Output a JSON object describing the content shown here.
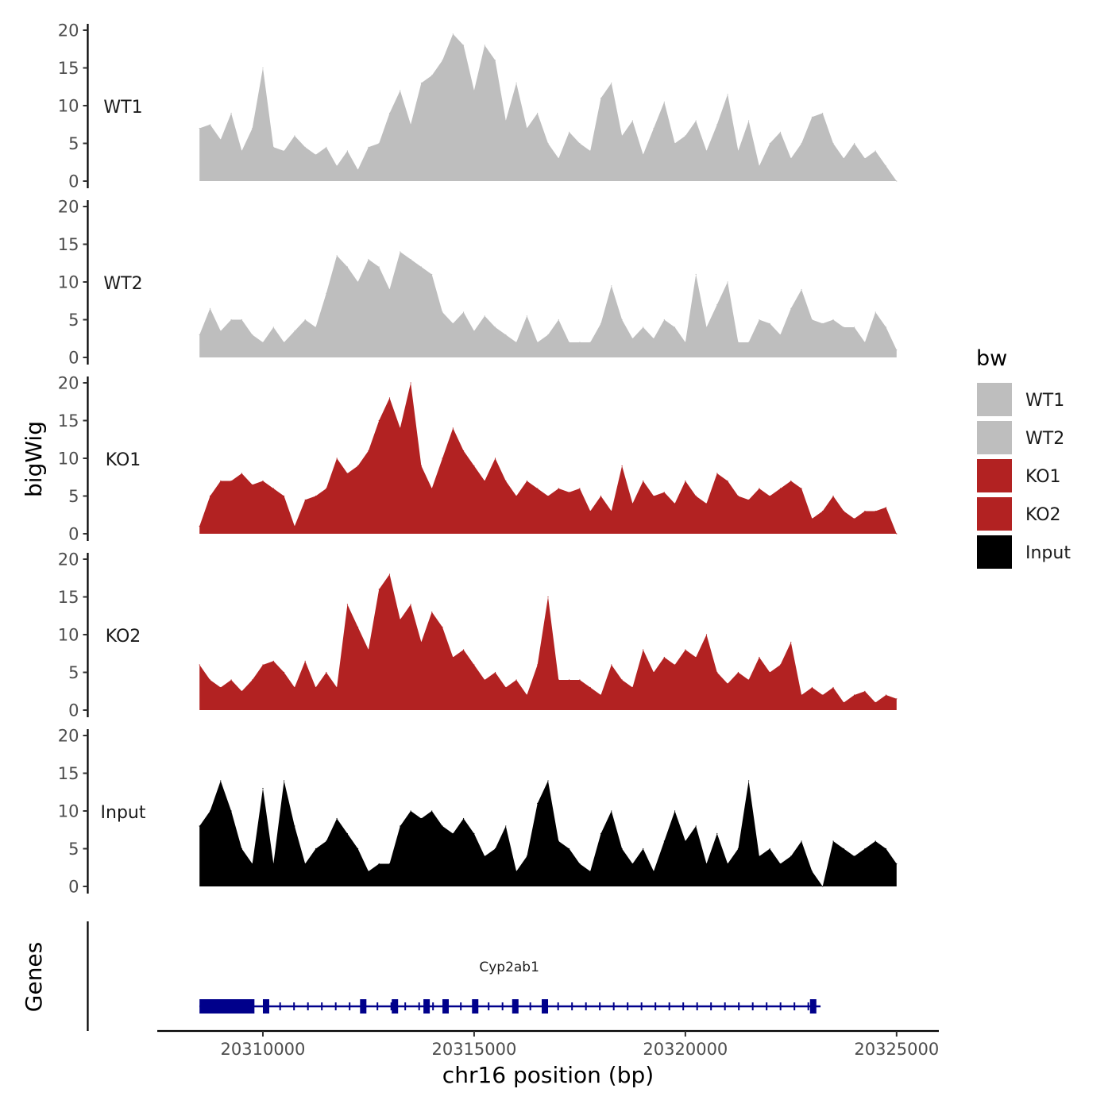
{
  "chart_data": {
    "type": "area",
    "title": "",
    "xlabel": "chr16 position (bp)",
    "ylabel": "bigWig",
    "genes_label": "Genes",
    "xlim": [
      20307500,
      20326000
    ],
    "x_ticks": [
      20310000,
      20315000,
      20320000,
      20325000
    ],
    "x_tick_labels": [
      "20310000",
      "20315000",
      "20320000",
      "20325000"
    ],
    "ylim": [
      0,
      21
    ],
    "y_ticks": [
      0,
      5,
      10,
      15,
      20
    ],
    "y_tick_labels": [
      "0",
      "5",
      "10",
      "15",
      "20"
    ],
    "legend": {
      "title": "bw",
      "position": "right",
      "entries": [
        {
          "label": "WT1",
          "color": "#BEBEBE"
        },
        {
          "label": "WT2",
          "color": "#BEBEBE"
        },
        {
          "label": "KO1",
          "color": "#B22222"
        },
        {
          "label": "KO2",
          "color": "#B22222"
        },
        {
          "label": "Input",
          "color": "#000000"
        }
      ]
    },
    "series": [
      {
        "name": "WT1",
        "color": "#BEBEBE",
        "x": [
          20308500,
          20308750,
          20309000,
          20309250,
          20309500,
          20309750,
          20310000,
          20310250,
          20310500,
          20310750,
          20311000,
          20311250,
          20311500,
          20311750,
          20312000,
          20312250,
          20312500,
          20312750,
          20313000,
          20313250,
          20313500,
          20313750,
          20314000,
          20314250,
          20314500,
          20314750,
          20315000,
          20315250,
          20315500,
          20315750,
          20316000,
          20316250,
          20316500,
          20316750,
          20317000,
          20317250,
          20317500,
          20317750,
          20318000,
          20318250,
          20318500,
          20318750,
          20319000,
          20319250,
          20319500,
          20319750,
          20320000,
          20320250,
          20320500,
          20320750,
          20321000,
          20321250,
          20321500,
          20321750,
          20322000,
          20322250,
          20322500,
          20322750,
          20323000,
          20323250,
          20323500,
          20323750,
          20324000,
          20324250,
          20324500,
          20324750,
          20325000
        ],
        "values": [
          7,
          7.5,
          5.5,
          9,
          4,
          7,
          15,
          4.5,
          4,
          6,
          4.5,
          3.5,
          4.5,
          2,
          4,
          1.5,
          4.5,
          5,
          9,
          12,
          7.5,
          13,
          14,
          16,
          19.5,
          18,
          12,
          18,
          16,
          8,
          13,
          7,
          9,
          5,
          3,
          6.5,
          5,
          4,
          11,
          13,
          6,
          8,
          3.5,
          7,
          10.5,
          5,
          6,
          8,
          4,
          7.5,
          11.5,
          4,
          8,
          2,
          5,
          6.5,
          3,
          5,
          8.5,
          9,
          5,
          3,
          5,
          3,
          4,
          2,
          0
        ]
      },
      {
        "name": "WT2",
        "color": "#BEBEBE",
        "x": [
          20308500,
          20308750,
          20309000,
          20309250,
          20309500,
          20309750,
          20310000,
          20310250,
          20310500,
          20310750,
          20311000,
          20311250,
          20311500,
          20311750,
          20312000,
          20312250,
          20312500,
          20312750,
          20313000,
          20313250,
          20313500,
          20313750,
          20314000,
          20314250,
          20314500,
          20314750,
          20315000,
          20315250,
          20315500,
          20315750,
          20316000,
          20316250,
          20316500,
          20316750,
          20317000,
          20317250,
          20317500,
          20317750,
          20318000,
          20318250,
          20318500,
          20318750,
          20319000,
          20319250,
          20319500,
          20319750,
          20320000,
          20320250,
          20320500,
          20320750,
          20321000,
          20321250,
          20321500,
          20321750,
          20322000,
          20322250,
          20322500,
          20322750,
          20323000,
          20323250,
          20323500,
          20323750,
          20324000,
          20324250,
          20324500,
          20324750,
          20325000
        ],
        "values": [
          3,
          6.5,
          3.5,
          5,
          5,
          3,
          2,
          4,
          2,
          3.5,
          5,
          4,
          8.5,
          13.5,
          12,
          10,
          13,
          12,
          9,
          14,
          13,
          12,
          11,
          6,
          4.5,
          6,
          3.5,
          5.5,
          4,
          3,
          2,
          5.5,
          2,
          3,
          5,
          2,
          2,
          2,
          4.5,
          9.5,
          5,
          2.5,
          4,
          2.5,
          5,
          4,
          2,
          11,
          4,
          7,
          10,
          2,
          2,
          5,
          4.5,
          3,
          6.5,
          9,
          5,
          4.5,
          5,
          4,
          4,
          2,
          6,
          4,
          1
        ]
      },
      {
        "name": "KO1",
        "color": "#B22222",
        "x": [
          20308500,
          20308750,
          20309000,
          20309250,
          20309500,
          20309750,
          20310000,
          20310250,
          20310500,
          20310750,
          20311000,
          20311250,
          20311500,
          20311750,
          20312000,
          20312250,
          20312500,
          20312750,
          20313000,
          20313250,
          20313500,
          20313750,
          20314000,
          20314250,
          20314500,
          20314750,
          20315000,
          20315250,
          20315500,
          20315750,
          20316000,
          20316250,
          20316500,
          20316750,
          20317000,
          20317250,
          20317500,
          20317750,
          20318000,
          20318250,
          20318500,
          20318750,
          20319000,
          20319250,
          20319500,
          20319750,
          20320000,
          20320250,
          20320500,
          20320750,
          20321000,
          20321250,
          20321500,
          20321750,
          20322000,
          20322250,
          20322500,
          20322750,
          20323000,
          20323250,
          20323500,
          20323750,
          20324000,
          20324250,
          20324500,
          20324750,
          20325000
        ],
        "values": [
          1,
          5,
          7,
          7,
          8,
          6.5,
          7,
          6,
          5,
          1,
          4.5,
          5,
          6,
          10,
          8,
          9,
          11,
          15,
          18,
          14,
          20,
          9,
          6,
          10,
          14,
          11,
          9,
          7,
          10,
          7,
          5,
          7,
          6,
          5,
          6,
          5.5,
          6,
          3,
          5,
          3,
          9,
          4,
          7,
          5,
          5.5,
          4,
          7,
          5,
          4,
          8,
          7,
          5,
          4.5,
          6,
          5,
          6,
          7,
          6,
          2,
          3,
          5,
          3,
          2,
          3,
          3,
          3.5,
          0
        ]
      },
      {
        "name": "KO2",
        "color": "#B22222",
        "x": [
          20308500,
          20308750,
          20309000,
          20309250,
          20309500,
          20309750,
          20310000,
          20310250,
          20310500,
          20310750,
          20311000,
          20311250,
          20311500,
          20311750,
          20312000,
          20312250,
          20312500,
          20312750,
          20313000,
          20313250,
          20313500,
          20313750,
          20314000,
          20314250,
          20314500,
          20314750,
          20315000,
          20315250,
          20315500,
          20315750,
          20316000,
          20316250,
          20316500,
          20316750,
          20317000,
          20317250,
          20317500,
          20317750,
          20318000,
          20318250,
          20318500,
          20318750,
          20319000,
          20319250,
          20319500,
          20319750,
          20320000,
          20320250,
          20320500,
          20320750,
          20321000,
          20321250,
          20321500,
          20321750,
          20322000,
          20322250,
          20322500,
          20322750,
          20323000,
          20323250,
          20323500,
          20323750,
          20324000,
          20324250,
          20324500,
          20324750,
          20325000
        ],
        "values": [
          6,
          4,
          3,
          4,
          2.5,
          4,
          6,
          6.5,
          5,
          3,
          6.5,
          3,
          5,
          3,
          14,
          11,
          8,
          16,
          18,
          12,
          14,
          9,
          13,
          11,
          7,
          8,
          6,
          4,
          5,
          3,
          4,
          2,
          6,
          15,
          4,
          4,
          4,
          3,
          2,
          6,
          4,
          3,
          8,
          5,
          7,
          6,
          8,
          7,
          10,
          5,
          3.5,
          5,
          4,
          7,
          5,
          6,
          9,
          2,
          3,
          2,
          3,
          1,
          2,
          2.5,
          1,
          2,
          1.5
        ]
      },
      {
        "name": "Input",
        "color": "#000000",
        "x": [
          20308500,
          20308750,
          20309000,
          20309250,
          20309500,
          20309750,
          20310000,
          20310250,
          20310500,
          20310750,
          20311000,
          20311250,
          20311500,
          20311750,
          20312000,
          20312250,
          20312500,
          20312750,
          20313000,
          20313250,
          20313500,
          20313750,
          20314000,
          20314250,
          20314500,
          20314750,
          20315000,
          20315250,
          20315500,
          20315750,
          20316000,
          20316250,
          20316500,
          20316750,
          20317000,
          20317250,
          20317500,
          20317750,
          20318000,
          20318250,
          20318500,
          20318750,
          20319000,
          20319250,
          20319500,
          20319750,
          20320000,
          20320250,
          20320500,
          20320750,
          20321000,
          20321250,
          20321500,
          20321750,
          20322000,
          20322250,
          20322500,
          20322750,
          20323000,
          20323250,
          20323500,
          20323750,
          20324000,
          20324250,
          20324500,
          20324750,
          20325000
        ],
        "values": [
          8,
          10,
          14,
          10,
          5,
          3,
          13,
          3,
          14,
          8,
          3,
          5,
          6,
          9,
          7,
          5,
          2,
          3,
          3,
          8,
          10,
          9,
          10,
          8,
          7,
          9,
          7,
          4,
          5,
          8,
          2,
          4,
          11,
          14,
          6,
          5,
          3,
          2,
          7,
          10,
          5,
          3,
          5,
          2,
          6,
          10,
          6,
          8,
          3,
          7,
          3,
          5,
          14,
          4,
          5,
          3,
          4,
          6,
          2,
          0,
          6,
          5,
          4,
          5,
          6,
          5,
          3
        ]
      }
    ],
    "genes": [
      {
        "name": "Cyp2ab1",
        "strand": "-",
        "start": 20308500,
        "end": 20323200,
        "exons": [
          [
            20308500,
            20309800
          ],
          [
            20310000,
            20310150
          ],
          [
            20312300,
            20312450
          ],
          [
            20313050,
            20313150
          ],
          [
            20313800,
            20313950
          ],
          [
            20314250,
            20314400
          ],
          [
            20314950,
            20315050
          ],
          [
            20315900,
            20316050
          ],
          [
            20316600,
            20316750
          ],
          [
            20322950,
            20323100
          ]
        ]
      }
    ]
  }
}
